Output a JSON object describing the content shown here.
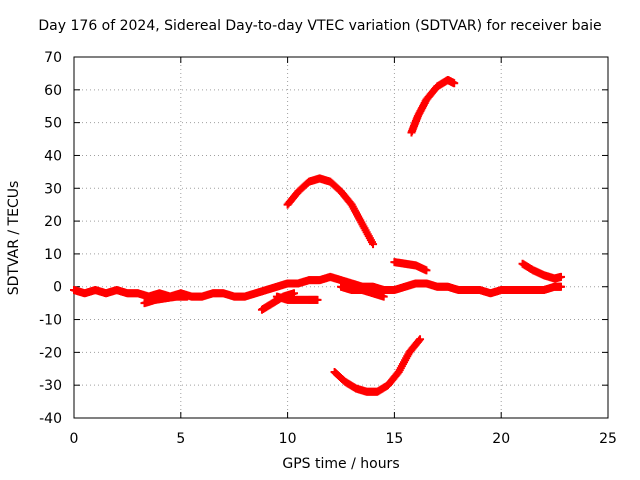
{
  "chart_data": {
    "type": "scatter",
    "title": "Day 176 of 2024, Sidereal Day-to-day VTEC variation (SDTVAR) for receiver baie",
    "xlabel": "GPS time / hours",
    "ylabel": "SDTVAR / TECUs",
    "xlim": [
      0,
      25
    ],
    "ylim": [
      -40,
      70
    ],
    "xticks": [
      0,
      5,
      10,
      15,
      20,
      25
    ],
    "yticks": [
      -40,
      -30,
      -20,
      -10,
      0,
      10,
      20,
      30,
      40,
      50,
      60,
      70
    ],
    "grid": true,
    "legend": "none",
    "series_color": "#ff0000",
    "series": [
      {
        "name": "baseline",
        "x": [
          0,
          0.5,
          1,
          1.5,
          2,
          2.5,
          3,
          3.5,
          4,
          4.5,
          5,
          5.5,
          6,
          6.5,
          7,
          7.5,
          8,
          8.5,
          9,
          9.5,
          10,
          10.5,
          11,
          11.5,
          12,
          12.5,
          13,
          13.5,
          14,
          14.5,
          15,
          15.5,
          16,
          16.5,
          17,
          17.5,
          18,
          18.5,
          19,
          19.5,
          20,
          20.5,
          21,
          21.5,
          22,
          22.5,
          22.8
        ],
        "y": [
          -1,
          -2,
          -1,
          -2,
          -1,
          -2,
          -2,
          -3,
          -2,
          -3,
          -2,
          -3,
          -3,
          -2,
          -2,
          -3,
          -3,
          -2,
          -1,
          0,
          1,
          1,
          2,
          2,
          3,
          2,
          1,
          0,
          0,
          -1,
          -1,
          0,
          1,
          1,
          0,
          0,
          -1,
          -1,
          -1,
          -2,
          -1,
          -1,
          -1,
          -1,
          -1,
          0,
          0
        ]
      },
      {
        "name": "low-tail-1",
        "x": [
          3.3,
          3.8,
          4.3,
          4.8,
          5.3
        ],
        "y": [
          -5,
          -4,
          -3.5,
          -3,
          -3
        ]
      },
      {
        "name": "low-tail-2",
        "x": [
          8.8,
          9.3,
          9.8,
          10.3
        ],
        "y": [
          -7,
          -5,
          -3,
          -2
        ]
      },
      {
        "name": "low-tail-3",
        "x": [
          9.5,
          10,
          10.5,
          11,
          11.4
        ],
        "y": [
          -3,
          -4,
          -4,
          -4,
          -4
        ]
      },
      {
        "name": "mid-band",
        "x": [
          12.5,
          13,
          13.5,
          14,
          14.5
        ],
        "y": [
          0,
          -1,
          -1,
          -2,
          -3
        ]
      },
      {
        "name": "arc-upper",
        "x": [
          10,
          10.5,
          11,
          11.5,
          12,
          12.5,
          13,
          13.5,
          14
        ],
        "y": [
          25,
          29,
          32,
          33,
          32,
          29,
          25,
          19,
          13
        ]
      },
      {
        "name": "arc-lower",
        "x": [
          12.2,
          12.7,
          13.2,
          13.7,
          14.2,
          14.7,
          15.2,
          15.7,
          16.2
        ],
        "y": [
          -26,
          -29,
          -31,
          -32,
          -32,
          -30,
          -26,
          -20,
          -16
        ]
      },
      {
        "name": "arc-high",
        "x": [
          15.8,
          16.1,
          16.5,
          17,
          17.5,
          17.8
        ],
        "y": [
          47,
          52,
          57,
          61,
          63,
          62
        ]
      },
      {
        "name": "short-15",
        "x": [
          15,
          15.5,
          16,
          16.5
        ],
        "y": [
          7.5,
          7,
          6.5,
          5
        ]
      },
      {
        "name": "short-21",
        "x": [
          21,
          21.5,
          22,
          22.5,
          22.8
        ],
        "y": [
          7,
          5,
          3.5,
          2.5,
          3
        ]
      }
    ]
  }
}
